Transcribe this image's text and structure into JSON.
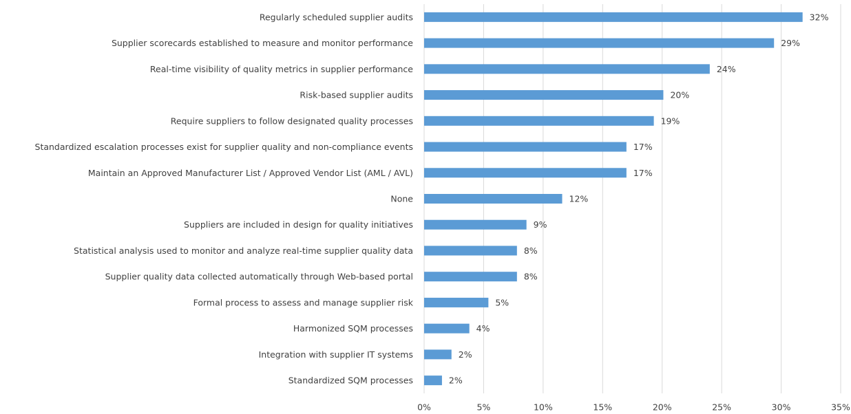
{
  "chart_data": {
    "type": "barh",
    "categories": [
      "Regularly scheduled supplier audits",
      "Supplier scorecards established to measure and monitor performance",
      "Real-time visibility of quality metrics in supplier performance",
      "Risk-based supplier audits",
      "Require suppliers to follow designated quality processes",
      "Standardized escalation processes exist for supplier quality and non-compliance events",
      "Maintain an Approved Manufacturer List / Approved Vendor List (AML / AVL)",
      "None",
      "Suppliers are included in design for quality initiatives",
      "Statistical analysis used to monitor and analyze real-time supplier quality data",
      "Supplier quality data collected automatically through Web-based portal",
      "Formal process to assess and manage supplier risk",
      "Harmonized SQM processes",
      "Integration with supplier IT systems",
      "Standardized SQM processes"
    ],
    "values": [
      31.8,
      29.4,
      24.0,
      20.1,
      19.3,
      17.0,
      17.0,
      11.6,
      8.6,
      7.8,
      7.8,
      5.4,
      3.8,
      2.3,
      1.5
    ],
    "value_labels": [
      "32%",
      "29%",
      "24%",
      "20%",
      "19%",
      "17%",
      "17%",
      "12%",
      "9%",
      "8%",
      "8%",
      "5%",
      "4%",
      "2%",
      "2%"
    ],
    "color": "#5b9bd5",
    "xlim": [
      0,
      35
    ],
    "xticks": [
      {
        "value": 0,
        "label": "0%"
      },
      {
        "value": 5,
        "label": "5%"
      },
      {
        "value": 10,
        "label": "10%"
      },
      {
        "value": 15,
        "label": "15%"
      },
      {
        "value": 20,
        "label": "20%"
      },
      {
        "value": 25,
        "label": "25%"
      },
      {
        "value": 30,
        "label": "30%"
      },
      {
        "value": 35,
        "label": "35%"
      }
    ],
    "grid": true
  }
}
